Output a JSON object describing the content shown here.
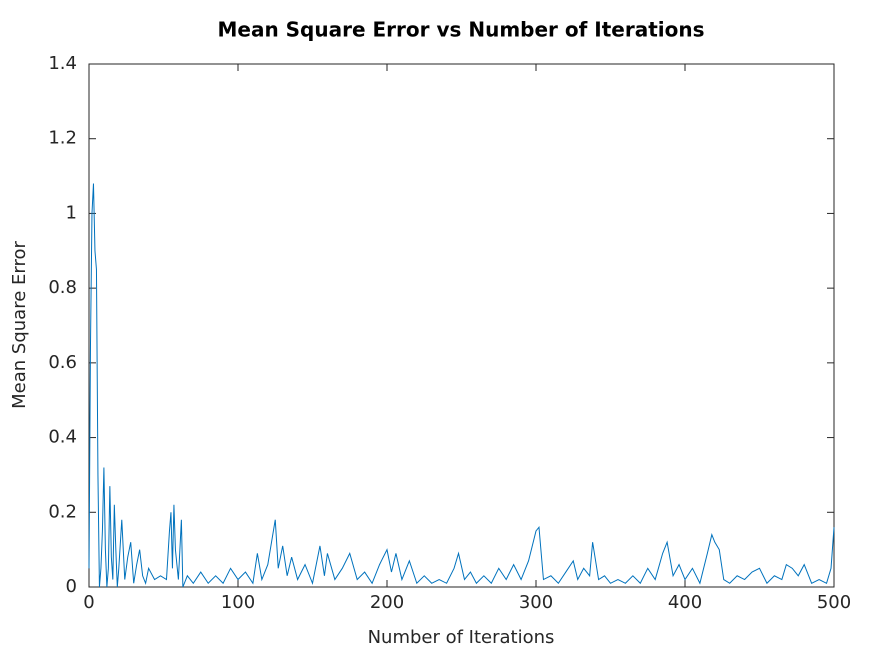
{
  "chart_data": {
    "type": "line",
    "title": "Mean Square Error vs Number of Iterations",
    "x_label": "Number of Iterations",
    "y_label": "Mean Square Error",
    "x": [
      0,
      1,
      2,
      3,
      4,
      5,
      6,
      7,
      8,
      9,
      10,
      11,
      12,
      13,
      14,
      15,
      16,
      17,
      18,
      19,
      20,
      22,
      24,
      26,
      28,
      30,
      32,
      34,
      36,
      38,
      40,
      44,
      48,
      52,
      54,
      55,
      56,
      57,
      58,
      60,
      62,
      63,
      66,
      70,
      75,
      80,
      85,
      90,
      95,
      100,
      105,
      110,
      113,
      116,
      120,
      125,
      127,
      130,
      133,
      136,
      140,
      145,
      150,
      155,
      158,
      160,
      165,
      170,
      175,
      180,
      185,
      190,
      195,
      200,
      203,
      206,
      210,
      215,
      220,
      225,
      230,
      235,
      240,
      245,
      248,
      252,
      256,
      260,
      265,
      270,
      275,
      280,
      285,
      290,
      295,
      300,
      302,
      305,
      310,
      315,
      320,
      325,
      328,
      332,
      336,
      338,
      342,
      346,
      350,
      355,
      360,
      365,
      370,
      375,
      380,
      385,
      388,
      392,
      396,
      400,
      405,
      410,
      415,
      418,
      420,
      423,
      426,
      430,
      435,
      440,
      445,
      450,
      455,
      460,
      465,
      468,
      472,
      476,
      480,
      485,
      490,
      495,
      498,
      500
    ],
    "series": [
      {
        "color": "#0072bd",
        "values": [
          0.05,
          0.65,
          1.0,
          1.08,
          0.9,
          0.85,
          0.3,
          0.0,
          0.05,
          0.15,
          0.32,
          0.1,
          0.0,
          0.05,
          0.27,
          0.08,
          0.02,
          0.22,
          0.1,
          0.0,
          0.05,
          0.18,
          0.02,
          0.08,
          0.12,
          0.01,
          0.06,
          0.1,
          0.03,
          0.01,
          0.05,
          0.02,
          0.03,
          0.02,
          0.15,
          0.2,
          0.05,
          0.22,
          0.1,
          0.02,
          0.18,
          0.0,
          0.03,
          0.01,
          0.04,
          0.01,
          0.03,
          0.01,
          0.05,
          0.02,
          0.04,
          0.01,
          0.09,
          0.02,
          0.06,
          0.18,
          0.05,
          0.11,
          0.03,
          0.08,
          0.02,
          0.06,
          0.01,
          0.11,
          0.03,
          0.09,
          0.02,
          0.05,
          0.09,
          0.02,
          0.04,
          0.01,
          0.06,
          0.1,
          0.04,
          0.09,
          0.02,
          0.07,
          0.01,
          0.03,
          0.01,
          0.02,
          0.01,
          0.05,
          0.09,
          0.02,
          0.04,
          0.01,
          0.03,
          0.01,
          0.05,
          0.02,
          0.06,
          0.02,
          0.07,
          0.15,
          0.16,
          0.02,
          0.03,
          0.01,
          0.04,
          0.07,
          0.02,
          0.05,
          0.03,
          0.12,
          0.02,
          0.03,
          0.01,
          0.02,
          0.01,
          0.03,
          0.01,
          0.05,
          0.02,
          0.09,
          0.12,
          0.03,
          0.06,
          0.02,
          0.05,
          0.01,
          0.09,
          0.14,
          0.12,
          0.1,
          0.02,
          0.01,
          0.03,
          0.02,
          0.04,
          0.05,
          0.01,
          0.03,
          0.02,
          0.06,
          0.05,
          0.03,
          0.06,
          0.01,
          0.02,
          0.01,
          0.05,
          0.16
        ]
      }
    ],
    "xlim": [
      0,
      500
    ],
    "xticks": [
      0,
      100,
      200,
      300,
      400,
      500
    ],
    "ylim": [
      0,
      1.4
    ],
    "yticks": [
      0,
      0.2,
      0.4,
      0.6,
      0.8,
      1,
      1.2,
      1.4
    ],
    "grid": false
  }
}
